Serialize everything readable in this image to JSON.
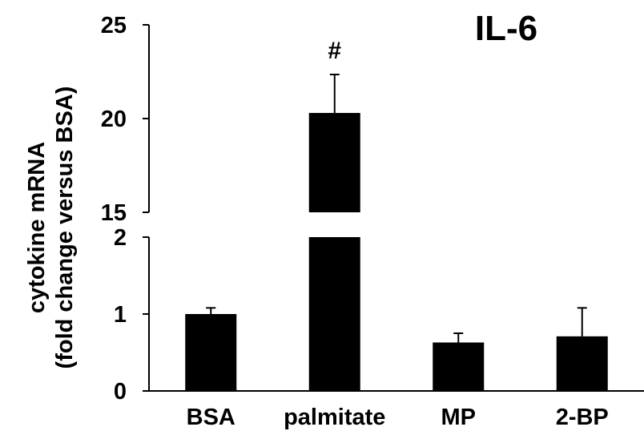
{
  "chart_data": {
    "type": "bar",
    "title": "IL-6",
    "ylabel": [
      "cytokine mRNA",
      "(fold change versus BSA)"
    ],
    "xlabel": "",
    "categories": [
      "BSA",
      "palmitate",
      "MP",
      "2-BP"
    ],
    "values": [
      1.0,
      20.3,
      0.63,
      0.71
    ],
    "errors": [
      0.08,
      2.05,
      0.12,
      0.37
    ],
    "significance": [
      "",
      "#",
      "",
      ""
    ],
    "axis_break": {
      "lower_range": [
        0,
        2
      ],
      "upper_range": [
        15,
        25
      ],
      "lower_ticks": [
        0,
        1,
        2
      ],
      "upper_ticks": [
        15,
        20,
        25
      ]
    },
    "bar_color": "#000000",
    "grid": false,
    "legend": "none"
  }
}
